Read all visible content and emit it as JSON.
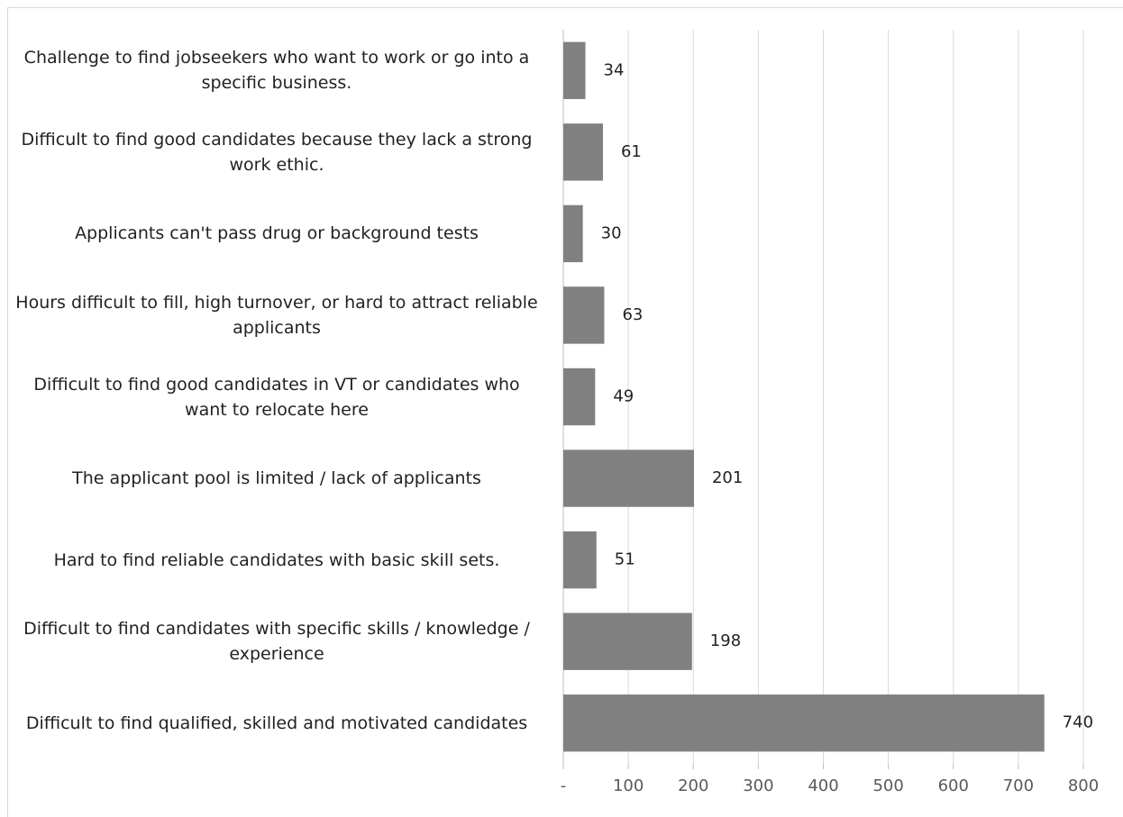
{
  "chart_data": {
    "type": "barh",
    "categories": [
      "Challenge to find jobseekers who want to work or go into a specific business.",
      "Difficult to find good candidates because they lack a strong work ethic.",
      "Applicants can't pass drug or background tests",
      "Hours difficult to fill, high turnover, or hard to attract reliable applicants",
      "Difficult to find good candidates in VT or candidates who want to relocate here",
      "The applicant pool is limited / lack of applicants",
      "Hard to find reliable candidates with basic skill sets.",
      "Difficult to find candidates with specific skills / knowledge / experience",
      "Difficult to find qualified, skilled and motivated candidates"
    ],
    "values": [
      34,
      61,
      30,
      63,
      49,
      201,
      51,
      198,
      740
    ],
    "color": "#808080",
    "xlim": [
      0,
      800
    ],
    "xticks": [
      {
        "value": 0,
        "label": "-"
      },
      100,
      200,
      300,
      400,
      500,
      600,
      700,
      800
    ],
    "grid": true
  }
}
